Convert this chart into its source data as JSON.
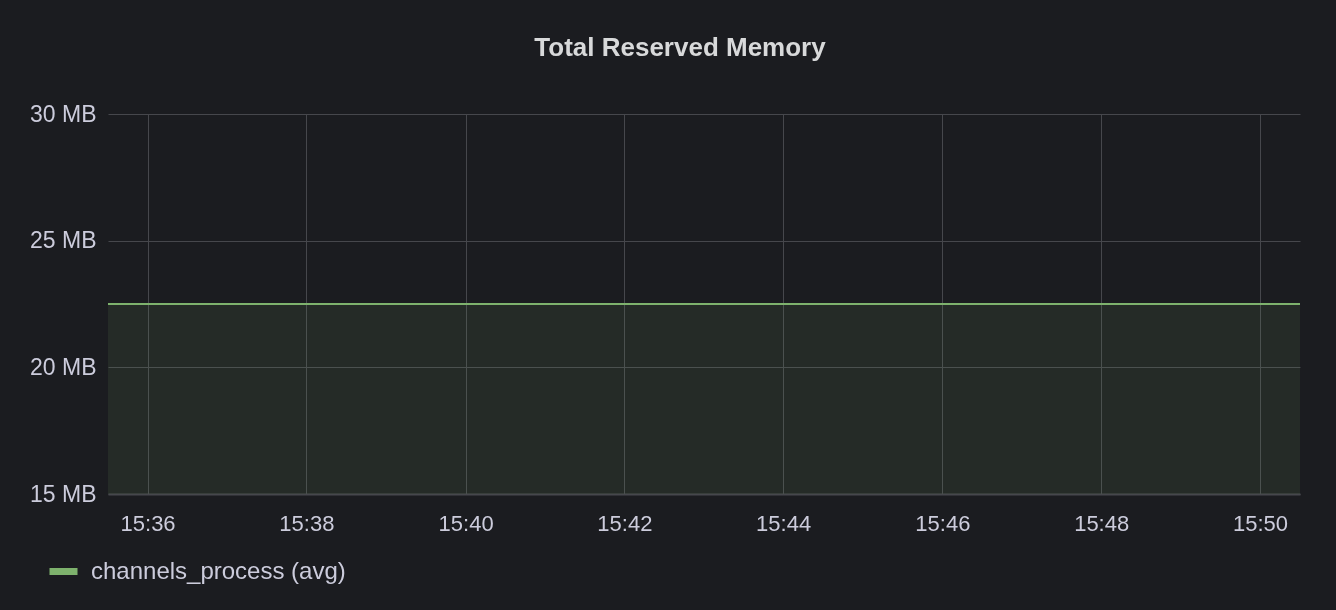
{
  "chart_data": {
    "type": "area",
    "title": "Total Reserved Memory",
    "x": [
      15.5917,
      15.8417
    ],
    "series": [
      {
        "name": "channels_process (avg)",
        "color": "#7eb26d",
        "values": [
          22.5,
          22.5
        ]
      }
    ],
    "xlim": [
      15.5917,
      15.8417
    ],
    "xticks": [
      {
        "value": 15.6,
        "label": "15:36"
      },
      {
        "value": 15.6333,
        "label": "15:38"
      },
      {
        "value": 15.6667,
        "label": "15:40"
      },
      {
        "value": 15.7,
        "label": "15:42"
      },
      {
        "value": 15.7333,
        "label": "15:44"
      },
      {
        "value": 15.7667,
        "label": "15:46"
      },
      {
        "value": 15.8,
        "label": "15:48"
      },
      {
        "value": 15.8333,
        "label": "15:50"
      }
    ],
    "ylim": [
      15,
      30
    ],
    "yticks": [
      {
        "value": 15,
        "label": "15 MB"
      },
      {
        "value": 20,
        "label": "20 MB"
      },
      {
        "value": 25,
        "label": "25 MB"
      },
      {
        "value": 30,
        "label": "30 MB"
      }
    ],
    "grid": true,
    "legend": "bottom left",
    "line_style": "solid"
  }
}
